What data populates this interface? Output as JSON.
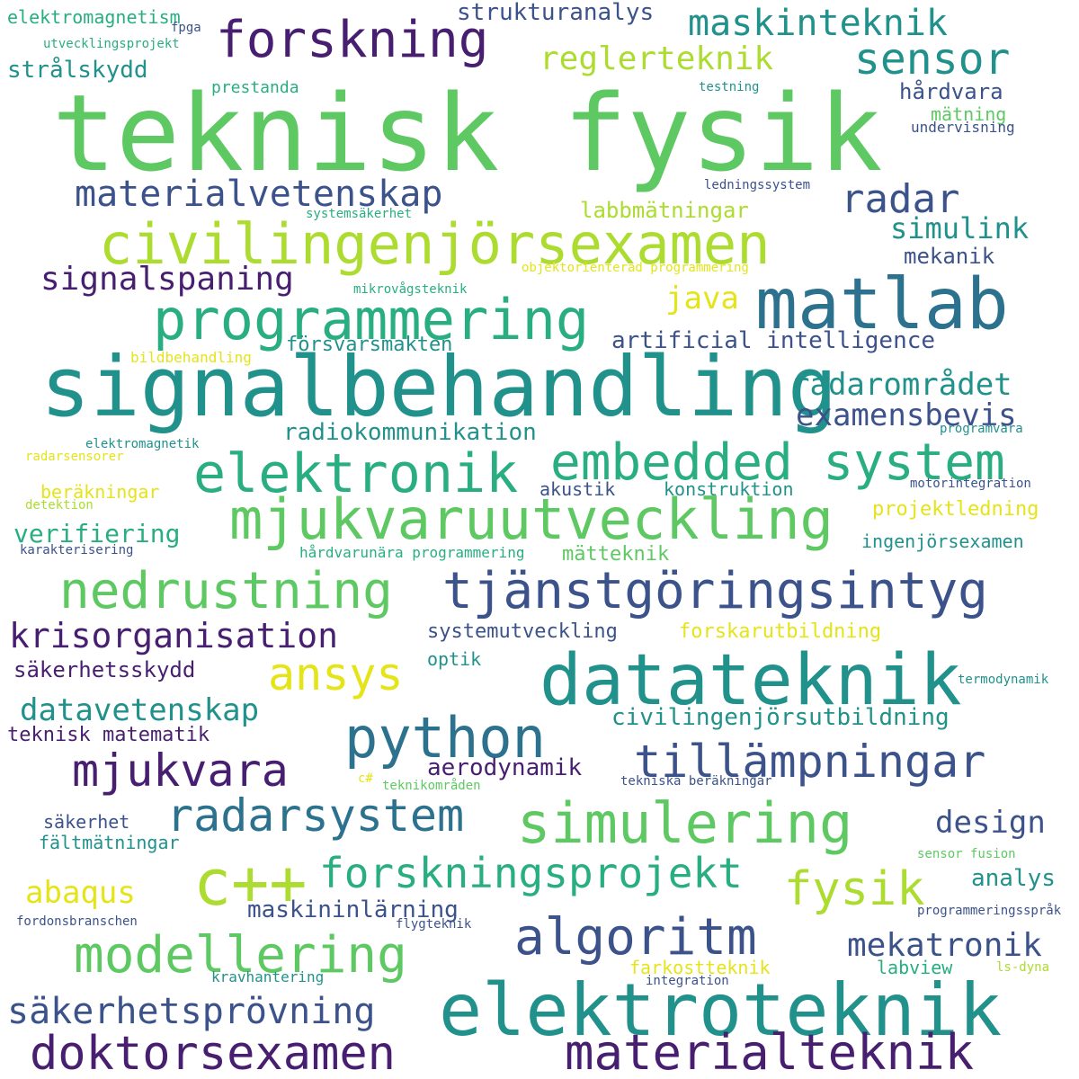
{
  "palette": {
    "deep_purple": "#481f70",
    "indigo": "#3b528b",
    "blue": "#2c728e",
    "teal": "#21918c",
    "teal_green": "#28ae80",
    "green": "#5ec962",
    "lime": "#addc30",
    "yellow": "#e5e419"
  },
  "words": [
    "teknisk fysik",
    "signalbehandling",
    "elektroteknik",
    "datateknik",
    "matlab",
    "civilingenjörsexamen",
    "programmering",
    "mjukvaruutveckling",
    "simulering",
    "python",
    "elektronik",
    "c++",
    "embedded system",
    "tjänstgöringsintyg",
    "forskning",
    "modellering",
    "algoritm",
    "nedrustning",
    "materialteknik",
    "doktorsexamen",
    "radarsystem",
    "tillämpningar",
    "forskningsprojekt",
    "mjukvara",
    "sensor",
    "ansys",
    "fysik",
    "säkerhetsprövning",
    "maskinteknik",
    "materialvetenskap",
    "krisorganisation",
    "radar",
    "mekatronik",
    "reglerteknik",
    "signalspaning",
    "radarområdet",
    "examensbevis",
    "datavetenskap",
    "abaqus",
    "design",
    "simulink",
    "java",
    "artificial intelligence",
    "civilingenjörsutbildning",
    "maskininlärning",
    "radiokommunikation",
    "labbmätningar",
    "strukturanalys",
    "hårdvara",
    "mekanik",
    "verifiering",
    "analys",
    "aerodynamik",
    "elektromagnetism",
    "strålskydd",
    "försvarsmakten",
    "systemutveckling",
    "forskarutbildning",
    "säkerhetsskydd",
    "teknisk matematik",
    "mätteknik",
    "projektledning",
    "ingenjörsexamen",
    "beräkningar",
    "akustik",
    "konstruktion",
    "fältmätningar",
    "säkerhet",
    "mätning",
    "labview",
    "farkostteknik",
    "optik",
    "prestanda",
    "utvecklingsprojekt",
    "undervisning",
    "testning",
    "ledningssystem",
    "systemsäkerhet",
    "objektorienterad programmering",
    "mikrovågsteknik",
    "bildbehandling",
    "elektromagnetik",
    "radarsensorer",
    "detektion",
    "programvara",
    "motorintegration",
    "karakterisering",
    "hårdvarunära programmering",
    "termodynamik",
    "c#",
    "teknikområden",
    "tekniska beräkningar",
    "sensor fusion",
    "fordonsbranschen",
    "flygteknik",
    "programmeringsspråk",
    "kravhantering",
    "integration",
    "ls-dyna",
    "fpga"
  ]
}
